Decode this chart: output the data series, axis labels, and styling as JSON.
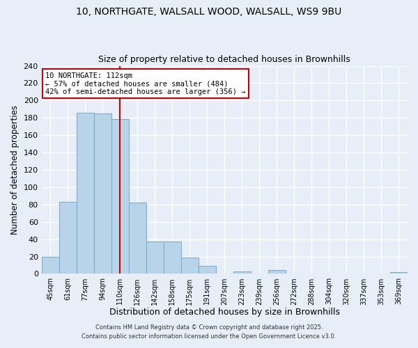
{
  "title_line1": "10, NORTHGATE, WALSALL WOOD, WALSALL, WS9 9BU",
  "title_line2": "Size of property relative to detached houses in Brownhills",
  "xlabel": "Distribution of detached houses by size in Brownhills",
  "ylabel": "Number of detached properties",
  "bar_labels": [
    "45sqm",
    "61sqm",
    "77sqm",
    "94sqm",
    "110sqm",
    "126sqm",
    "142sqm",
    "158sqm",
    "175sqm",
    "191sqm",
    "207sqm",
    "223sqm",
    "239sqm",
    "256sqm",
    "272sqm",
    "288sqm",
    "304sqm",
    "320sqm",
    "337sqm",
    "353sqm",
    "369sqm"
  ],
  "bar_values": [
    20,
    83,
    186,
    185,
    179,
    82,
    37,
    37,
    19,
    9,
    0,
    3,
    0,
    4,
    0,
    0,
    0,
    0,
    0,
    0,
    2
  ],
  "bar_color": "#b8d4e8",
  "bar_edge_color": "#7aafd4",
  "vline_x_index": 4,
  "vline_color": "#cc0000",
  "annotation_title": "10 NORTHGATE: 112sqm",
  "annotation_line2": "← 57% of detached houses are smaller (484)",
  "annotation_line3": "42% of semi-detached houses are larger (356) →",
  "annotation_box_color": "#ffffff",
  "annotation_box_edge": "#cc0000",
  "ylim": [
    0,
    240
  ],
  "yticks": [
    0,
    20,
    40,
    60,
    80,
    100,
    120,
    140,
    160,
    180,
    200,
    220,
    240
  ],
  "footer1": "Contains HM Land Registry data © Crown copyright and database right 2025.",
  "footer2": "Contains public sector information licensed under the Open Government Licence v3.0.",
  "background_color": "#e8eef8",
  "grid_color": "#ffffff"
}
